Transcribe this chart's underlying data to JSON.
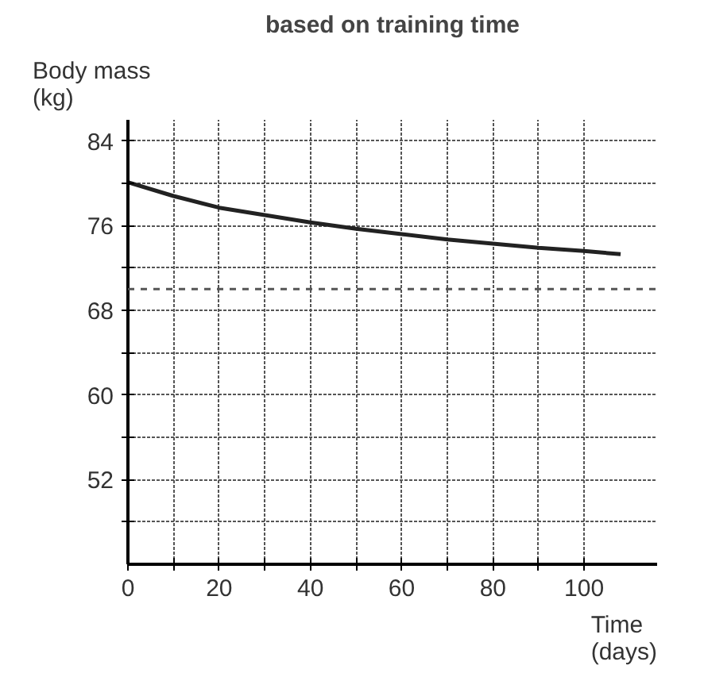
{
  "chart_data": {
    "type": "line",
    "title": "based on training time",
    "xlabel": "Time\n(days)",
    "ylabel": "Body mass\n(kg)",
    "series": [
      {
        "color": "#222222",
        "x": [
          0,
          10,
          20,
          30,
          40,
          50,
          60,
          70,
          80,
          90,
          100,
          108
        ],
        "values": [
          80.1,
          78.8,
          77.7,
          77.0,
          76.3,
          75.7,
          75.2,
          74.7,
          74.3,
          73.9,
          73.6,
          73.3
        ]
      }
    ],
    "xlim": [
      0,
      116
    ],
    "ylim": [
      44,
      86
    ],
    "xticks": [
      0,
      {
        "value": 10,
        "label": null
      },
      20,
      {
        "value": 30,
        "label": null
      },
      40,
      {
        "value": 50,
        "label": null
      },
      60,
      {
        "value": 70,
        "label": null
      },
      80,
      {
        "value": 90,
        "label": null
      },
      100
    ],
    "yticks": [
      {
        "value": 48,
        "label": null
      },
      52,
      {
        "value": 56,
        "label": null
      },
      60,
      {
        "value": 64,
        "label": null
      },
      68,
      {
        "value": 72,
        "label": null
      },
      76,
      {
        "value": 80,
        "label": null
      },
      84
    ],
    "ref_lines": [
      {
        "axis": "y",
        "value": 70,
        "line_style": "dashed",
        "color": "#555555"
      }
    ],
    "grid": true,
    "marker": "none",
    "line_style": "solid"
  }
}
